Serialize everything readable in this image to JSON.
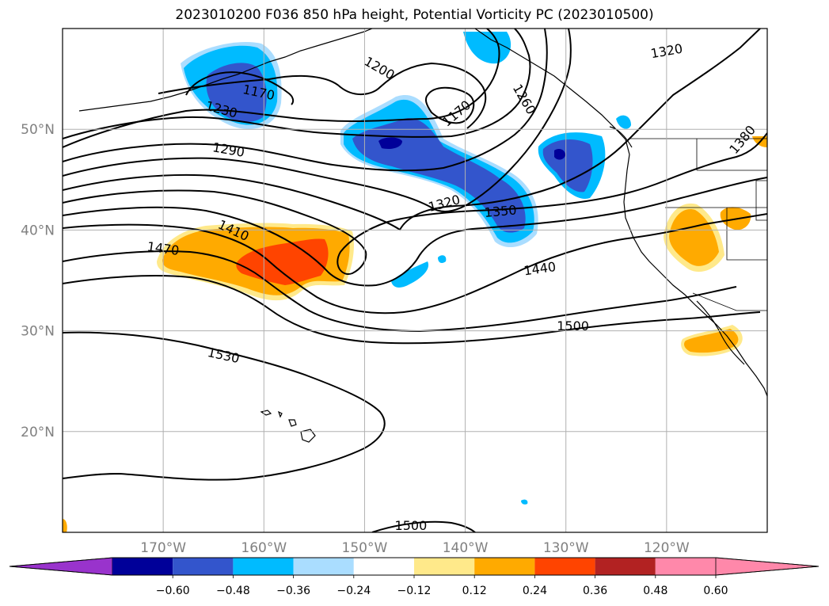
{
  "title": "2023010200 F036 850 hPa height, Potential Vorticity PC (2023010500)",
  "chart_data": {
    "type": "contour-map",
    "title": "2023010200 F036 850 hPa height, Potential Vorticity PC (2023010500)",
    "projection": "PlateCarree",
    "lon_range": [
      -180,
      -110
    ],
    "lat_range": [
      10,
      60
    ],
    "lat_ticks": [
      {
        "value": 20,
        "label": "20°N"
      },
      {
        "value": 30,
        "label": "30°N"
      },
      {
        "value": 40,
        "label": "40°N"
      },
      {
        "value": 50,
        "label": "50°N"
      }
    ],
    "lon_ticks": [
      {
        "value": -170,
        "label": "170°W"
      },
      {
        "value": -160,
        "label": "160°W"
      },
      {
        "value": -150,
        "label": "150°W"
      },
      {
        "value": -140,
        "label": "140°W"
      },
      {
        "value": -130,
        "label": "130°W"
      },
      {
        "value": -120,
        "label": "120°W"
      }
    ],
    "grid": true,
    "colorbar": {
      "orientation": "horizontal",
      "extend": "both",
      "levels": [
        -0.72,
        -0.6,
        -0.48,
        -0.36,
        -0.24,
        -0.12,
        0.12,
        0.24,
        0.36,
        0.48,
        0.6,
        0.72
      ],
      "colors": [
        "#9933cc",
        "#000099",
        "#3355cc",
        "#00bbff",
        "#aaddff",
        "#ffffff",
        "#ffe98a",
        "#ffaa00",
        "#ff4400",
        "#b22222",
        "#ff88aa"
      ],
      "under_color": "#9933cc",
      "over_color": "#ff88aa",
      "tick_labels": [
        "−0.60",
        "−0.48",
        "−0.36",
        "−0.24",
        "−0.12",
        "0.12",
        "0.24",
        "0.36",
        "0.48",
        "0.60"
      ]
    },
    "height_contours": [
      {
        "label": "1170",
        "lon": -160.5,
        "lat": 53.7,
        "angle": 12
      },
      {
        "label": "1170",
        "lon": -140.9,
        "lat": 51.6,
        "angle": -40
      },
      {
        "label": "1200",
        "lon": -148.5,
        "lat": 56.1,
        "angle": 30
      },
      {
        "label": "1230",
        "lon": -164.2,
        "lat": 52.0,
        "angle": 15
      },
      {
        "label": "1260",
        "lon": -134.1,
        "lat": 53.0,
        "angle": 60
      },
      {
        "label": "1290",
        "lon": -163.5,
        "lat": 48.0,
        "angle": 10
      },
      {
        "label": "1320",
        "lon": -142.1,
        "lat": 42.7,
        "angle": -15
      },
      {
        "label": "1320",
        "lon": -120.0,
        "lat": 57.8,
        "angle": -10
      },
      {
        "label": "1350",
        "lon": -136.5,
        "lat": 41.9,
        "angle": -5
      },
      {
        "label": "1380",
        "lon": -112.5,
        "lat": 49.0,
        "angle": -50
      },
      {
        "label": "1410",
        "lon": -163.0,
        "lat": 40.0,
        "angle": 25
      },
      {
        "label": "1440",
        "lon": -132.6,
        "lat": 36.2,
        "angle": -8
      },
      {
        "label": "1470",
        "lon": -170.0,
        "lat": 38.2,
        "angle": 8
      },
      {
        "label": "1500",
        "lon": -129.3,
        "lat": 30.5,
        "angle": 0
      },
      {
        "label": "1500",
        "lon": -145.4,
        "lat": 10.7,
        "angle": 0
      },
      {
        "label": "1530",
        "lon": -164.0,
        "lat": 27.6,
        "angle": 12
      }
    ]
  }
}
